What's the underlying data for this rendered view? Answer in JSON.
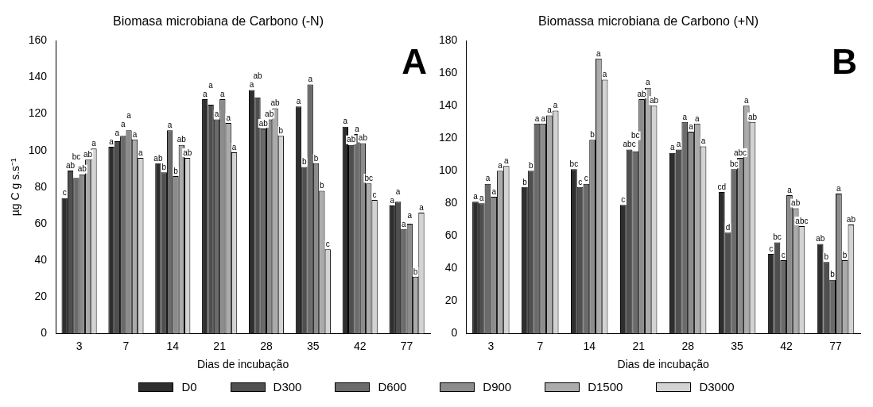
{
  "chart_data": [
    {
      "type": "bar",
      "title": "Biomasa microbiana de Carbono (-N)",
      "xlabel": "Dias de incubação",
      "ylabel": "µg C g s.s⁻¹",
      "annotations": [
        "A"
      ],
      "categories": [
        "3",
        "7",
        "14",
        "21",
        "28",
        "35",
        "42",
        "77"
      ],
      "ylim": [
        0,
        160
      ],
      "yticks": [
        0,
        20,
        40,
        60,
        80,
        100,
        120,
        140,
        160
      ],
      "grid": false,
      "legend": "bottom",
      "series": [
        {
          "name": "D0",
          "color": "#2e2e2e",
          "values": [
            74,
            102,
            93,
            128,
            133,
            124,
            113,
            70
          ],
          "value_labels": [
            "c",
            "a",
            "ab",
            "a",
            "a",
            "a",
            "a",
            "a"
          ]
        },
        {
          "name": "D300",
          "color": "#4f4f4f",
          "values": [
            89,
            105,
            88,
            125,
            129,
            91,
            103,
            72
          ],
          "value_labels": [
            "ab",
            "a",
            "b",
            "a",
            "ab",
            "b",
            "ab",
            "a"
          ]
        },
        {
          "name": "D600",
          "color": "#6b6b6b",
          "values": [
            85,
            108,
            111,
            117,
            112,
            136,
            109,
            57
          ],
          "value_labels": [
            "bc",
            "a",
            "a",
            "a",
            "ab",
            "a",
            "a",
            "a"
          ]
        },
        {
          "name": "D900",
          "color": "#8c8c8c",
          "values": [
            87,
            111,
            86,
            128,
            117,
            93,
            104,
            60
          ],
          "value_labels": [
            "ab",
            "a",
            "b",
            "a",
            "ab",
            "b",
            "ab",
            "a"
          ]
        },
        {
          "name": "D1500",
          "color": "#ababab",
          "values": [
            95,
            106,
            103,
            115,
            123,
            78,
            82,
            31
          ],
          "value_labels": [
            "ab",
            "a",
            "ab",
            "a",
            "ab",
            "b",
            "bc",
            "b"
          ]
        },
        {
          "name": "D3000",
          "color": "#d3d3d3",
          "values": [
            101,
            96,
            96,
            99,
            108,
            46,
            73,
            66
          ],
          "value_labels": [
            "a",
            "a",
            "ab",
            "a",
            "b",
            "c",
            "c",
            "a"
          ]
        }
      ]
    },
    {
      "type": "bar",
      "title": "Biomassa microbiana de Carbono (+N)",
      "xlabel": "Dias de incubação",
      "annotations": [
        "B"
      ],
      "categories": [
        "3",
        "7",
        "14",
        "21",
        "28",
        "35",
        "42",
        "77"
      ],
      "ylim": [
        0,
        180
      ],
      "yticks": [
        0,
        20,
        40,
        60,
        80,
        100,
        120,
        140,
        160,
        180
      ],
      "grid": false,
      "series": [
        {
          "color": "#2e2e2e",
          "values": [
            81,
            90,
            101,
            79,
            111,
            87,
            49,
            55
          ],
          "value_labels": [
            "a",
            "b",
            "bc",
            "c",
            "a",
            "cd",
            "c",
            "ab"
          ]
        },
        {
          "color": "#4f4f4f",
          "values": [
            80,
            100,
            90,
            113,
            113,
            62,
            56,
            44
          ],
          "value_labels": [
            "a",
            "b",
            "c",
            "abc",
            "a",
            "d",
            "bc",
            "b"
          ]
        },
        {
          "color": "#6b6b6b",
          "values": [
            92,
            129,
            92,
            112,
            130,
            101,
            45,
            33
          ],
          "value_labels": [
            "a",
            "a",
            "c",
            "bc",
            "a",
            "bc",
            "c",
            "b"
          ]
        },
        {
          "color": "#8c8c8c",
          "values": [
            84,
            129,
            119,
            144,
            124,
            108,
            85,
            86
          ],
          "value_labels": [
            "a",
            "a",
            "b",
            "ab",
            "a",
            "abc",
            "a",
            "a"
          ]
        },
        {
          "color": "#ababab",
          "values": [
            100,
            134,
            169,
            151,
            129,
            140,
            77,
            45
          ],
          "value_labels": [
            "a",
            "a",
            "a",
            "a",
            "a",
            "a",
            "ab",
            "b"
          ]
        },
        {
          "color": "#d3d3d3",
          "values": [
            103,
            137,
            156,
            140,
            115,
            130,
            66,
            67
          ],
          "value_labels": [
            "a",
            "a",
            "a",
            "ab",
            "a",
            "ab",
            "abc",
            "ab"
          ]
        }
      ]
    }
  ]
}
